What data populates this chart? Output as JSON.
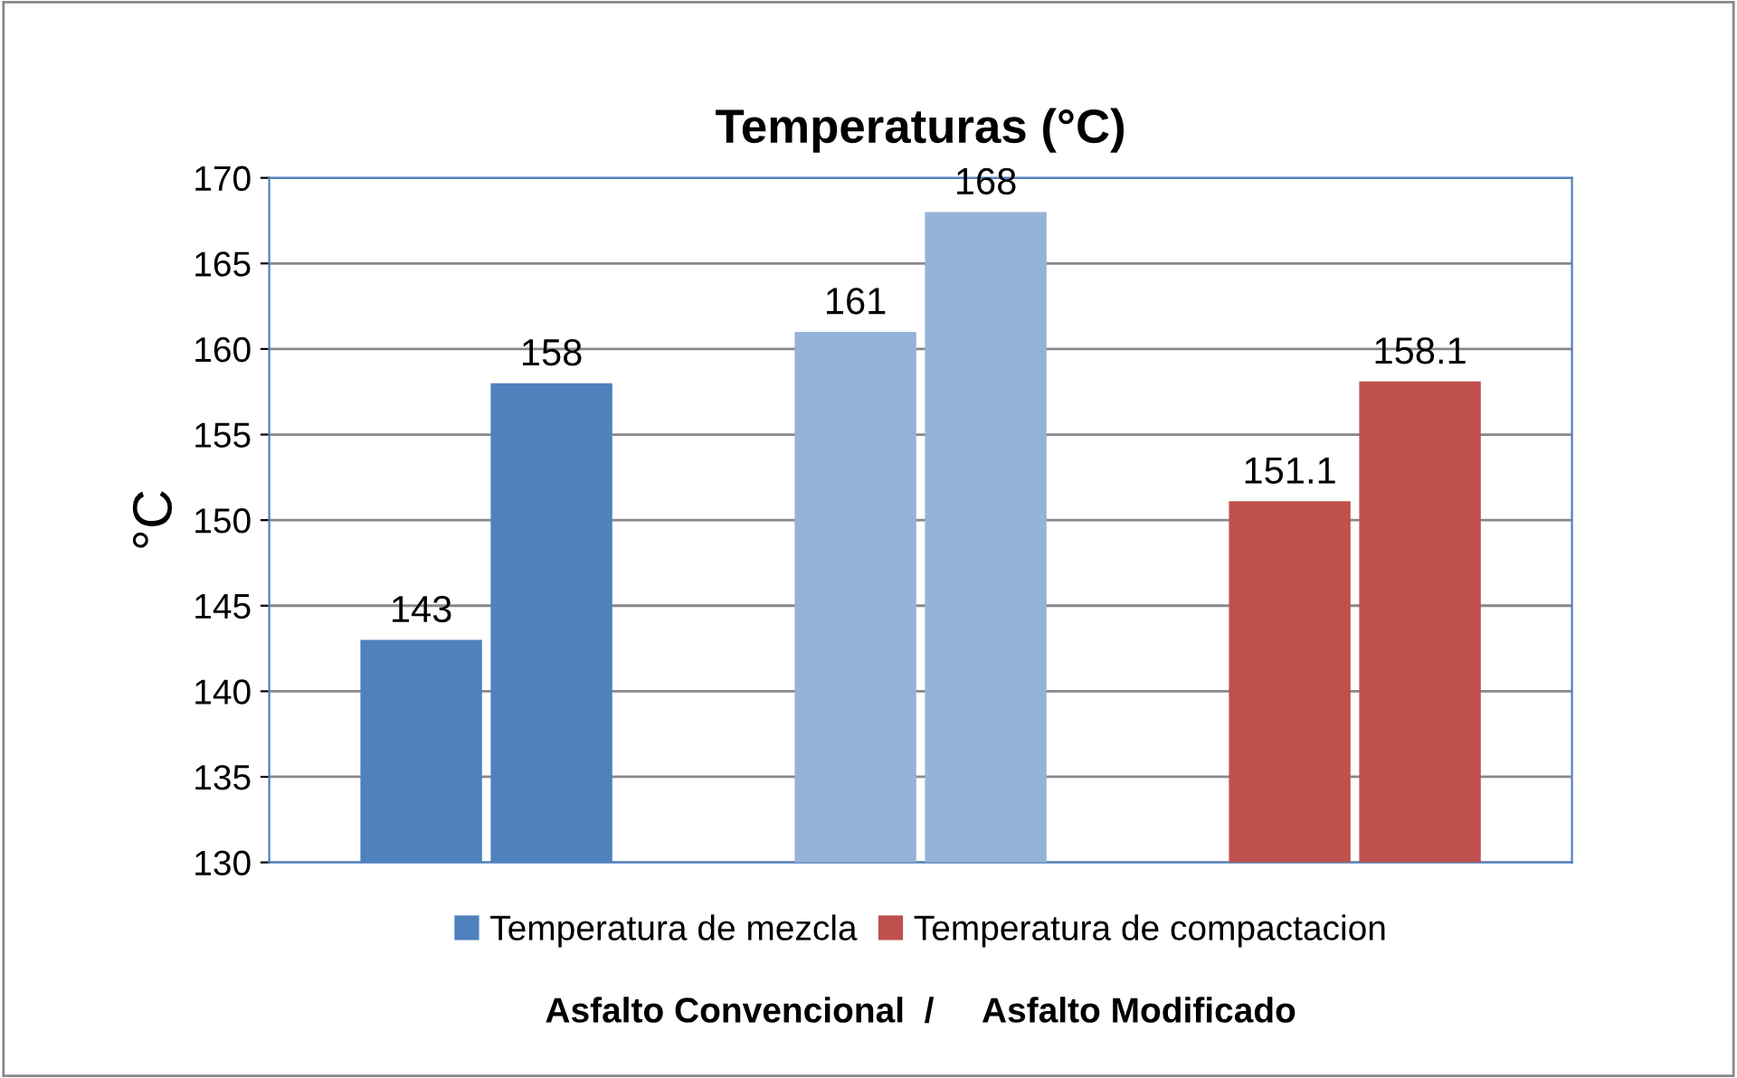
{
  "chart_data": {
    "type": "bar",
    "title": "Temperaturas (°C)",
    "ylabel": "°C",
    "xlabel": "Asfalto Convencional  /     Asfalto Modificado",
    "categories": [
      null,
      null,
      null
    ],
    "series": [
      {
        "name": "Temperatura de mezcla",
        "color": "#4f81bd",
        "colors": [
          "#4f81bd",
          "#95b3d7",
          "#c0504d"
        ],
        "values": [
          143,
          161,
          151.1
        ]
      },
      {
        "name": "Temperatura de compactacion",
        "color": "#c0504d",
        "colors": [
          "#4f81bd",
          "#95b3d7",
          "#c0504d"
        ],
        "values": [
          158,
          168,
          158.1
        ]
      }
    ],
    "ylim": [
      130,
      170
    ],
    "yticks": [
      130,
      135,
      140,
      145,
      150,
      155,
      160,
      165,
      170
    ],
    "grid": "y",
    "legend": "bottom",
    "data_labels": true
  }
}
